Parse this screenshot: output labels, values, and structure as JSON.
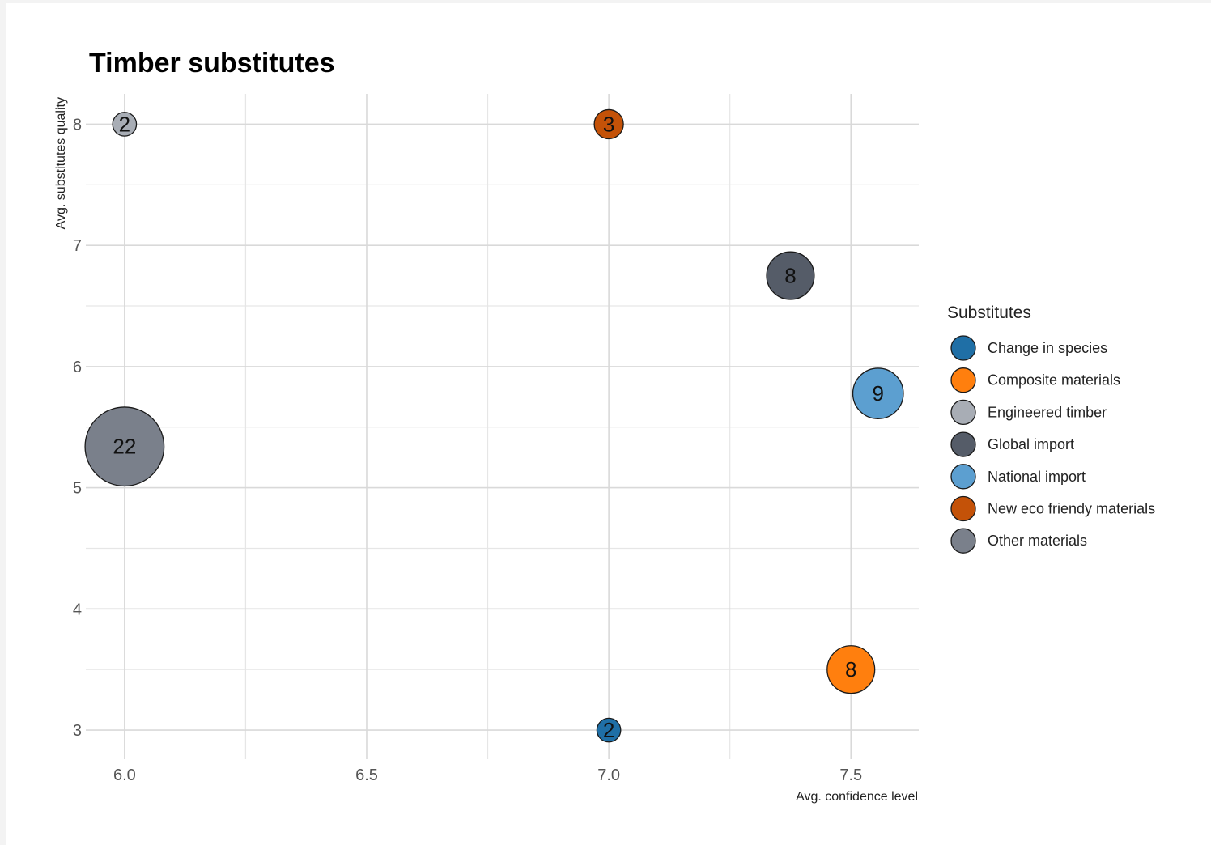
{
  "chart_data": {
    "type": "scatter",
    "title": "Timber substitutes",
    "xlabel": "Avg. confidence level",
    "ylabel": "Avg. substitutes quality",
    "xlim": [
      5.92,
      7.64
    ],
    "ylim": [
      2.76,
      8.25
    ],
    "x_ticks": [
      6.0,
      6.5,
      7.0,
      7.5
    ],
    "x_tick_labels": [
      "6.0",
      "6.5",
      "7.0",
      "7.5"
    ],
    "y_ticks": [
      3,
      4,
      5,
      6,
      7,
      8
    ],
    "y_tick_labels": [
      "3",
      "4",
      "5",
      "6",
      "7",
      "8"
    ],
    "grid": true,
    "legend_title": "Substitutes",
    "legend_position": "right",
    "series": [
      {
        "name": "Change in species",
        "color": "#1f6fa6",
        "points": [
          {
            "x": 7.0,
            "y": 3.0,
            "size": 2
          }
        ]
      },
      {
        "name": "Composite materials",
        "color": "#ff7f0e",
        "points": [
          {
            "x": 7.5,
            "y": 3.5,
            "size": 8
          }
        ]
      },
      {
        "name": "Engineered timber",
        "color": "#a8adb5",
        "points": [
          {
            "x": 6.0,
            "y": 8.0,
            "size": 2
          }
        ]
      },
      {
        "name": "Global import",
        "color": "#555c68",
        "points": [
          {
            "x": 7.375,
            "y": 6.75,
            "size": 8
          }
        ]
      },
      {
        "name": "National import",
        "color": "#5c9fd0",
        "points": [
          {
            "x": 7.556,
            "y": 5.778,
            "size": 9
          }
        ]
      },
      {
        "name": "New eco friendy materials",
        "color": "#c45208",
        "points": [
          {
            "x": 7.0,
            "y": 8.0,
            "size": 3
          }
        ]
      },
      {
        "name": "Other materials",
        "color": "#7a808b",
        "points": [
          {
            "x": 6.0,
            "y": 5.34,
            "size": 22
          }
        ]
      }
    ]
  }
}
